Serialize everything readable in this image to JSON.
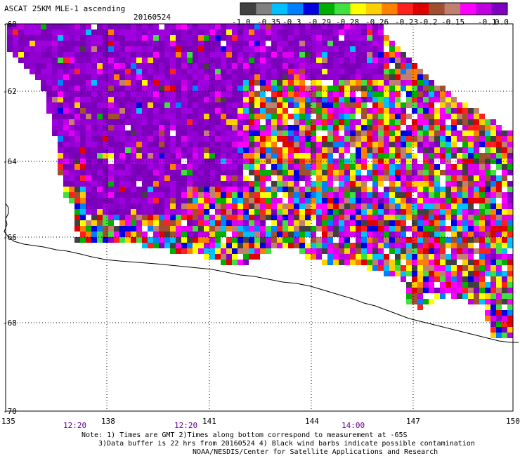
{
  "title": "ASCAT 25KM MLE-1 ascending",
  "date": "20160524",
  "colorbar": {
    "colors": [
      "#404040",
      "#808080",
      "#00c0ff",
      "#0080ff",
      "#0000e0",
      "#00b000",
      "#40e040",
      "#ffff00",
      "#ffd000",
      "#ff8000",
      "#ff2020",
      "#e00000",
      "#a05030",
      "#c08070",
      "#ff00ff",
      "#c000e0",
      "#8000c0"
    ],
    "labels": [
      "-1.0",
      "-0.35",
      "-0.3",
      "-0.29",
      "-0.28",
      "-0.26",
      "-0.23",
      "-0.2",
      "-0.15",
      "-0.1",
      "0.0"
    ]
  },
  "axes": {
    "lat_labels": [
      "-60",
      "-62",
      "-64",
      "-66",
      "-68",
      "-70"
    ],
    "lon_labels": [
      "135",
      "138",
      "141",
      "144",
      "147",
      "150"
    ]
  },
  "times": [
    "12:20",
    "12:20",
    "14:00"
  ],
  "notes": [
    "Note: 1) Times are GMT 2)Times along bottom correspond to measurement at -65S",
    "3)Data buffer is 22 hrs from 20160524 4) Black wind barbs indicate possible contamination",
    "NOAA/NESDIS/Center for Satellite Applications and Research"
  ]
}
